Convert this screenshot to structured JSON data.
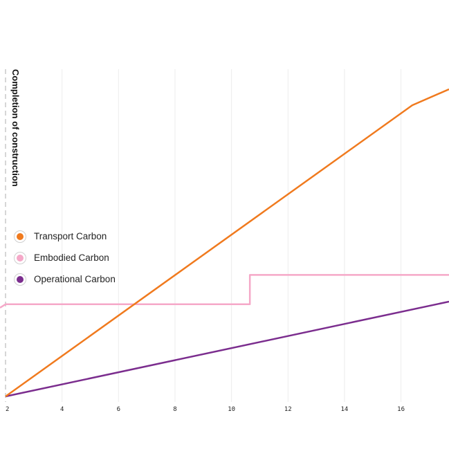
{
  "chart_data": {
    "type": "line",
    "x_ticks": [
      2,
      4,
      6,
      8,
      10,
      12,
      14,
      16
    ],
    "xlim": [
      2,
      17.7
    ],
    "ylim": [
      0,
      115
    ],
    "grid": true,
    "legend_position": "left-middle",
    "vertical_marker": {
      "x": 2,
      "label": "Completion of construction",
      "style": "dashed"
    },
    "series": [
      {
        "name": "Transport Carbon",
        "color": "#f07a1e",
        "x": [
          2,
          16.4,
          17.7
        ],
        "y": [
          0,
          109,
          115
        ]
      },
      {
        "name": "Embodied Carbon",
        "color": "#f5a8c8",
        "x": [
          2,
          10.65,
          10.65,
          17.7
        ],
        "y": [
          34.5,
          34.5,
          45.5,
          45.5
        ]
      },
      {
        "name": "Operational Carbon",
        "color": "#7b2d8e",
        "x": [
          2,
          17.7
        ],
        "y": [
          0,
          35.5
        ]
      }
    ]
  }
}
